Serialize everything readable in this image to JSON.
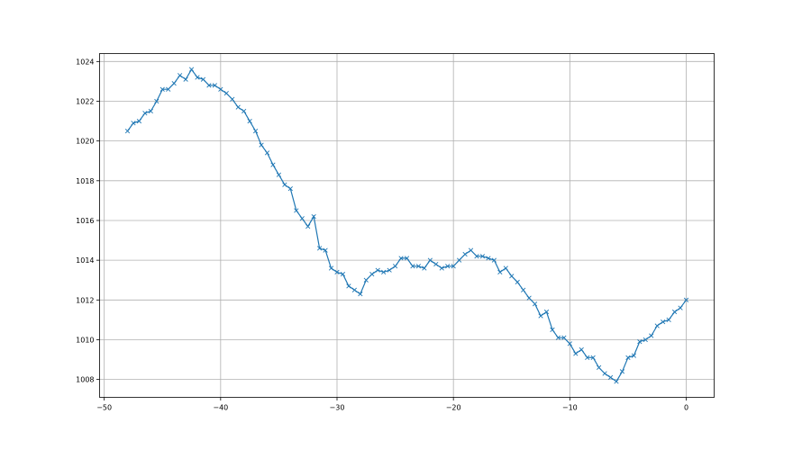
{
  "chart_data": {
    "type": "line",
    "title": "",
    "xlabel": "",
    "ylabel": "",
    "xlim": [
      -50.4,
      2.4
    ],
    "ylim": [
      1007.1,
      1024.4
    ],
    "grid": true,
    "marker": "x",
    "line_color": "#1f77b4",
    "xticks": [
      -50,
      -40,
      -30,
      -20,
      -10,
      0
    ],
    "xtick_labels": [
      "−50",
      "−40",
      "−30",
      "−20",
      "−10",
      "0"
    ],
    "yticks": [
      1008,
      1010,
      1012,
      1014,
      1016,
      1018,
      1020,
      1022,
      1024
    ],
    "ytick_labels": [
      "1008",
      "1010",
      "1012",
      "1014",
      "1016",
      "1018",
      "1020",
      "1022",
      "1024"
    ],
    "series": [
      {
        "x": [
          -48,
          -47.5,
          -47,
          -46.5,
          -46,
          -45.5,
          -45,
          -44.5,
          -44,
          -43.5,
          -43,
          -42.5,
          -42,
          -41.5,
          -41,
          -40.5,
          -40,
          -39.5,
          -39,
          -38.5,
          -38,
          -37.5,
          -37,
          -36.5,
          -36,
          -35.5,
          -35,
          -34.5,
          -34,
          -33.5,
          -33,
          -32.5,
          -32,
          -31.5,
          -31,
          -30.5,
          -30,
          -29.5,
          -29,
          -28.5,
          -28,
          -27.5,
          -27,
          -26.5,
          -26,
          -25.5,
          -25,
          -24.5,
          -24,
          -23.5,
          -23,
          -22.5,
          -22,
          -21.5,
          -21,
          -20.5,
          -20,
          -19.5,
          -19,
          -18.5,
          -18,
          -17.5,
          -17,
          -16.5,
          -16,
          -15.5,
          -15,
          -14.5,
          -14,
          -13.5,
          -13,
          -12.5,
          -12,
          -11.5,
          -11,
          -10.5,
          -10,
          -9.5,
          -9,
          -8.5,
          -8,
          -7.5,
          -7,
          -6.5,
          -6,
          -5.5,
          -5,
          -4.5,
          -4,
          -3.5,
          -3,
          -2.5,
          -2,
          -1.5,
          -1,
          -0.5,
          0
        ],
        "y": [
          1020.5,
          1020.9,
          1021.0,
          1021.4,
          1021.5,
          1022.0,
          1022.6,
          1022.6,
          1022.9,
          1023.3,
          1023.1,
          1023.6,
          1023.2,
          1023.1,
          1022.8,
          1022.8,
          1022.6,
          1022.4,
          1022.1,
          1021.7,
          1021.5,
          1021.0,
          1020.5,
          1019.8,
          1019.4,
          1018.8,
          1018.3,
          1017.8,
          1017.6,
          1016.5,
          1016.1,
          1015.7,
          1016.2,
          1014.6,
          1014.5,
          1013.6,
          1013.4,
          1013.3,
          1012.7,
          1012.5,
          1012.3,
          1013.0,
          1013.3,
          1013.5,
          1013.4,
          1013.5,
          1013.7,
          1014.1,
          1014.1,
          1013.7,
          1013.7,
          1013.6,
          1014.0,
          1013.8,
          1013.6,
          1013.7,
          1013.7,
          1014.0,
          1014.3,
          1014.5,
          1014.2,
          1014.2,
          1014.1,
          1014.0,
          1013.4,
          1013.6,
          1013.2,
          1012.9,
          1012.5,
          1012.1,
          1011.8,
          1011.2,
          1011.4,
          1010.5,
          1010.1,
          1010.1,
          1009.8,
          1009.3,
          1009.5,
          1009.1,
          1009.1,
          1008.6,
          1008.3,
          1008.1,
          1007.9,
          1008.4,
          1009.1,
          1009.2,
          1009.9,
          1010.0,
          1010.2,
          1010.7,
          1010.9,
          1011.0,
          1011.4,
          1011.6,
          1012.0
        ]
      }
    ]
  }
}
